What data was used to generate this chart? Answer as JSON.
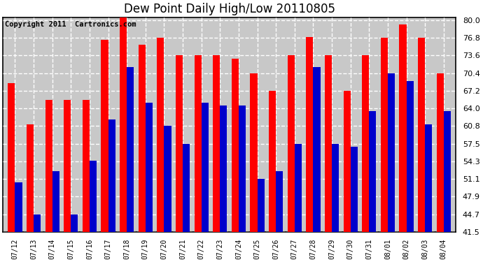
{
  "title": "Dew Point Daily High/Low 20110805",
  "copyright": "Copyright 2011  Cartronics.com",
  "dates": [
    "07/12",
    "07/13",
    "07/14",
    "07/15",
    "07/16",
    "07/17",
    "07/18",
    "07/19",
    "07/20",
    "07/21",
    "07/22",
    "07/23",
    "07/24",
    "07/25",
    "07/26",
    "07/27",
    "07/28",
    "07/29",
    "07/30",
    "07/31",
    "08/01",
    "08/02",
    "08/03",
    "08/04"
  ],
  "highs": [
    68.5,
    61.0,
    65.5,
    65.5,
    65.5,
    76.5,
    80.5,
    75.5,
    76.8,
    73.6,
    73.6,
    73.6,
    73.0,
    70.4,
    67.2,
    73.6,
    77.0,
    73.6,
    67.2,
    73.6,
    76.8,
    79.2,
    76.8,
    70.4
  ],
  "lows": [
    50.5,
    44.7,
    52.5,
    44.7,
    54.5,
    62.0,
    71.5,
    65.0,
    60.8,
    57.5,
    65.0,
    64.5,
    64.5,
    51.1,
    52.5,
    57.5,
    71.5,
    57.5,
    57.0,
    63.5,
    70.4,
    69.0,
    61.0,
    63.5
  ],
  "high_color": "#ff0000",
  "low_color": "#0000cc",
  "bg_color": "#ffffff",
  "plot_bg_color": "#c8c8c8",
  "grid_color": "#ffffff",
  "ymin": 41.5,
  "ymax": 80.5,
  "ytick_values": [
    41.5,
    44.7,
    47.9,
    51.1,
    54.3,
    57.5,
    60.8,
    64.0,
    67.2,
    70.4,
    73.6,
    76.8,
    80.0
  ],
  "ytick_labels": [
    "41.5",
    "44.7",
    "47.9",
    "51.1",
    "54.3",
    "57.5",
    "60.8",
    "64.0",
    "67.2",
    "70.4",
    "73.6",
    "76.8",
    "80.0"
  ],
  "title_fontsize": 12,
  "copyright_fontsize": 7.5,
  "bar_width": 0.38,
  "figwidth": 6.9,
  "figheight": 3.75,
  "dpi": 100
}
